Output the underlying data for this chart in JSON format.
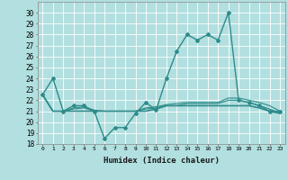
{
  "xlabel": "Humidex (Indice chaleur)",
  "bg_color": "#b2dfdf",
  "grid_color": "#ffffff",
  "line_color": "#2e8b8b",
  "xlim": [
    -0.5,
    23.5
  ],
  "ylim": [
    18,
    31
  ],
  "yticks": [
    18,
    19,
    20,
    21,
    22,
    23,
    24,
    25,
    26,
    27,
    28,
    29,
    30
  ],
  "xticks": [
    0,
    1,
    2,
    3,
    4,
    5,
    6,
    7,
    8,
    9,
    10,
    11,
    12,
    13,
    14,
    15,
    16,
    17,
    18,
    19,
    20,
    21,
    22,
    23
  ],
  "series": [
    {
      "x": [
        0,
        1,
        2,
        3,
        4,
        5,
        6,
        7,
        8,
        9,
        10,
        11,
        12,
        13,
        14,
        15,
        16,
        17,
        18,
        19,
        20,
        21,
        22,
        23
      ],
      "y": [
        22.5,
        24.0,
        21.0,
        21.5,
        21.5,
        21.0,
        18.5,
        19.5,
        19.5,
        20.8,
        21.8,
        21.1,
        24.0,
        26.5,
        28.0,
        27.5,
        28.0,
        27.5,
        30.0,
        22.0,
        21.8,
        21.5,
        21.0,
        21.0
      ],
      "marker": "D",
      "markersize": 2.0,
      "linewidth": 1.0
    },
    {
      "x": [
        0,
        1,
        2,
        3,
        4,
        5,
        6,
        7,
        8,
        9,
        10,
        11,
        12,
        13,
        14,
        15,
        16,
        17,
        18,
        19,
        20,
        21,
        22,
        23
      ],
      "y": [
        22.5,
        21.0,
        21.0,
        21.0,
        21.0,
        21.0,
        21.0,
        21.0,
        21.0,
        21.0,
        21.0,
        21.2,
        21.5,
        21.5,
        21.5,
        21.5,
        21.5,
        21.5,
        21.5,
        21.5,
        21.5,
        21.3,
        21.0,
        20.8
      ],
      "marker": null,
      "markersize": 0,
      "linewidth": 1.2
    },
    {
      "x": [
        0,
        1,
        2,
        3,
        4,
        5,
        6,
        7,
        8,
        9,
        10,
        11,
        12,
        13,
        14,
        15,
        16,
        17,
        18,
        19,
        20,
        21,
        22,
        23
      ],
      "y": [
        22.5,
        21.0,
        21.0,
        21.2,
        21.3,
        21.0,
        21.0,
        21.0,
        21.0,
        21.0,
        21.2,
        21.3,
        21.5,
        21.5,
        21.7,
        21.7,
        21.7,
        21.7,
        22.0,
        22.0,
        21.8,
        21.5,
        21.2,
        20.8
      ],
      "marker": null,
      "markersize": 0,
      "linewidth": 0.8
    },
    {
      "x": [
        0,
        1,
        2,
        3,
        4,
        5,
        6,
        7,
        8,
        9,
        10,
        11,
        12,
        13,
        14,
        15,
        16,
        17,
        18,
        19,
        20,
        21,
        22,
        23
      ],
      "y": [
        22.5,
        21.0,
        21.0,
        21.3,
        21.4,
        21.1,
        21.0,
        21.0,
        21.0,
        21.0,
        21.3,
        21.4,
        21.6,
        21.7,
        21.8,
        21.8,
        21.8,
        21.8,
        22.2,
        22.2,
        22.0,
        21.8,
        21.5,
        21.0
      ],
      "marker": null,
      "markersize": 0,
      "linewidth": 0.8
    }
  ]
}
